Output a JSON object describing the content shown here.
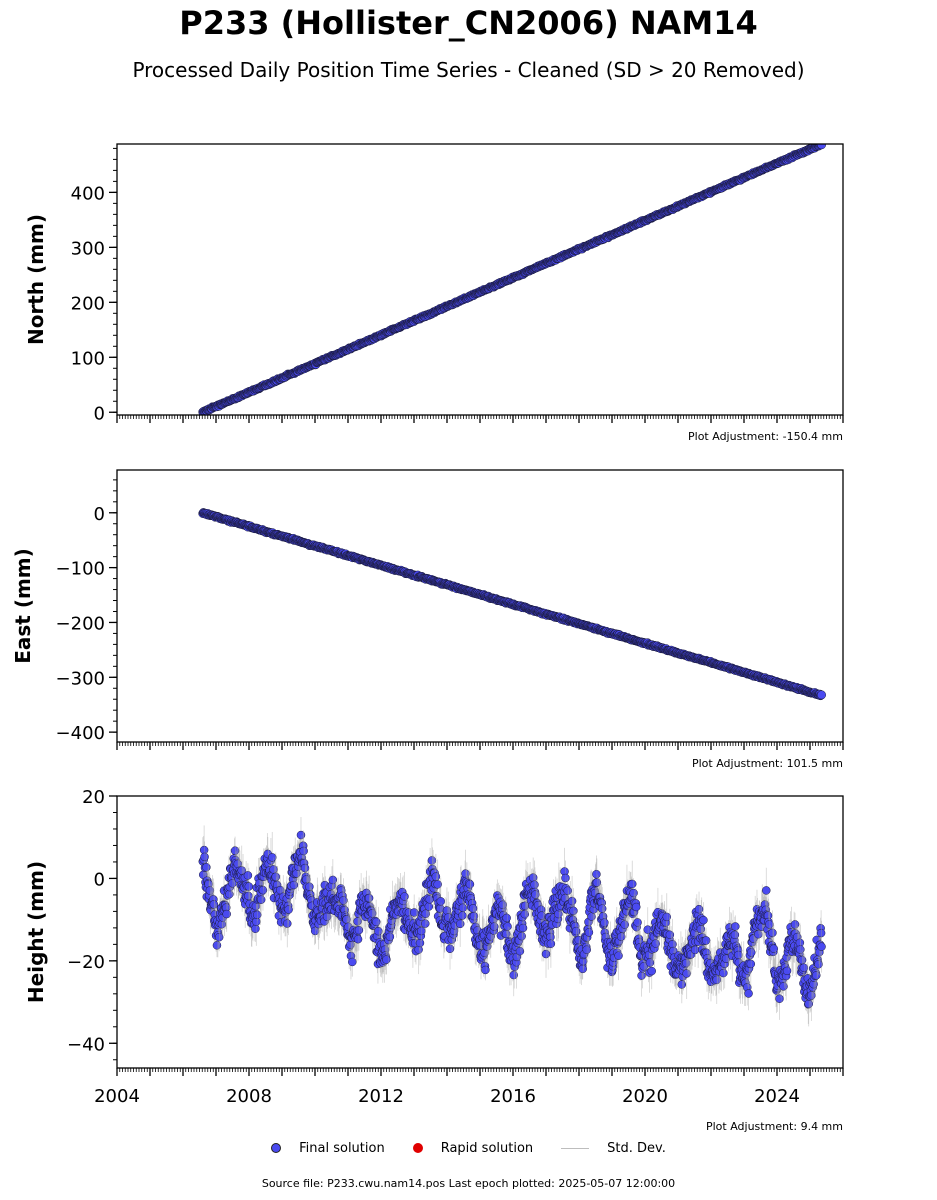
{
  "title": "P233 (Hollister_CN2006) NAM14",
  "subtitle": "Processed Daily Position Time Series - Cleaned (SD > 20 Removed)",
  "legend": {
    "final": "Final solution",
    "rapid": "Rapid solution",
    "std": "Std. Dev."
  },
  "source_note": "Source file: P233.cwu.nam14.pos  Last epoch plotted: 2025-05-07 12:00:00",
  "colors": {
    "final": "#4a4af0",
    "rapid": "#e00000",
    "std": "#9e9e9e",
    "marker_edge": "#1a1a3a"
  },
  "chart_data": [
    {
      "type": "scatter",
      "panel": "north",
      "ylabel": "North (mm)",
      "annotation": "Plot Adjustment: -150.4 mm",
      "xlim": [
        2004.0,
        2026.0
      ],
      "ylim": [
        -5,
        488
      ],
      "yticks": [
        0,
        100,
        200,
        300,
        400
      ],
      "series": [
        {
          "name": "Final solution",
          "trend": {
            "x": [
              2006.6,
              2025.35
            ],
            "y": [
              0,
              488
            ]
          },
          "noise_mm": 2
        }
      ]
    },
    {
      "type": "scatter",
      "panel": "east",
      "ylabel": "East (mm)",
      "annotation": "Plot Adjustment: 101.5 mm",
      "xlim": [
        2004.0,
        2026.0
      ],
      "ylim": [
        -418,
        78
      ],
      "yticks": [
        0,
        -100,
        -200,
        -300,
        -400
      ],
      "series": [
        {
          "name": "Final solution",
          "trend": {
            "x": [
              2006.6,
              2025.35
            ],
            "y": [
              0,
              -333
            ]
          },
          "noise_mm": 2
        }
      ]
    },
    {
      "type": "scatter",
      "panel": "height",
      "ylabel": "Height (mm)",
      "annotation": "Plot Adjustment: 9.4 mm",
      "xlim": [
        2004.0,
        2026.0
      ],
      "ylim": [
        -46,
        20
      ],
      "yticks": [
        20,
        0,
        -20,
        -40
      ],
      "xticks": [
        2004,
        2008,
        2012,
        2016,
        2020,
        2024
      ],
      "series": [
        {
          "name": "Final solution",
          "trend": {
            "x": [
              2006.6,
              2025.35
            ],
            "y": [
              -2,
              -20
            ]
          },
          "seasonal_amplitude_mm": 6,
          "noise_mm": 4,
          "std_dev_mm": 4
        }
      ]
    }
  ]
}
